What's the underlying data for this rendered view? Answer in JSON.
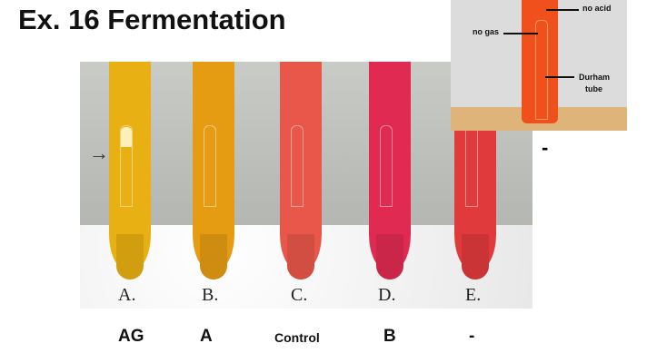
{
  "title": "Ex. 16 Fermentation",
  "photo": {
    "tubes": [
      {
        "letter": "A.",
        "color": "#e8b012"
      },
      {
        "letter": "B.",
        "color": "#e59c12"
      },
      {
        "letter": "C.",
        "color": "#e9574a"
      },
      {
        "letter": "D.",
        "color": "#e02a52"
      },
      {
        "letter": "E.",
        "color": "#e03a3c"
      }
    ],
    "arrow": "→"
  },
  "results": [
    "AG",
    "A",
    "Control",
    "B",
    "-"
  ],
  "inset": {
    "no_acid": "no acid",
    "no_gas": "no gas",
    "durham": "Durham",
    "tube": "tube"
  },
  "side_mark": "-"
}
